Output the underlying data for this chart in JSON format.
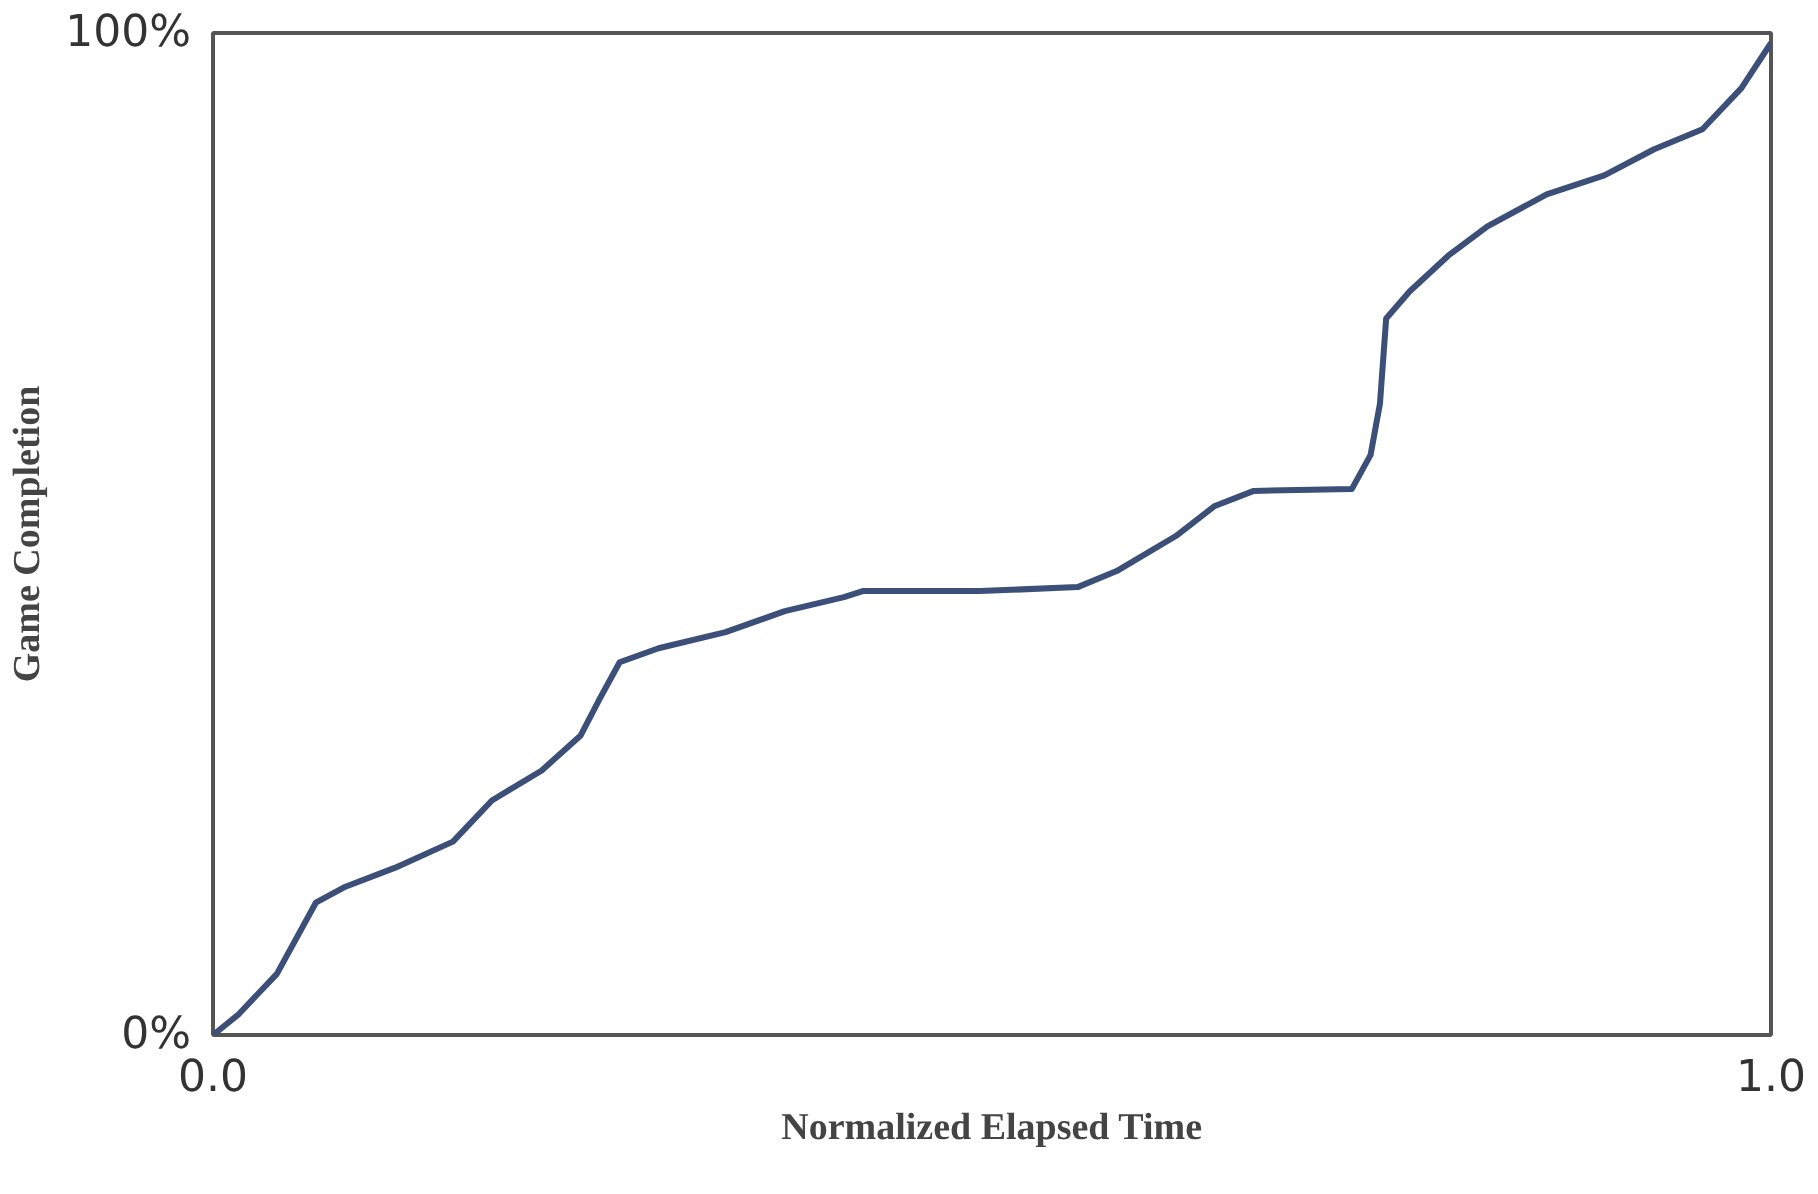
{
  "chart_data": {
    "type": "line",
    "xlabel": "Normalized Elapsed Time",
    "ylabel": "Game Completion",
    "xlim": [
      0,
      1
    ],
    "ylim": [
      0,
      100
    ],
    "xticks": [
      {
        "value": 0,
        "label": "0.0"
      },
      {
        "value": 1,
        "label": "1.0"
      }
    ],
    "yticks": [
      {
        "value": 0,
        "label": "0%"
      },
      {
        "value": 100,
        "label": "100%"
      }
    ],
    "marker": "none",
    "line_style": "solid",
    "series": [
      {
        "color": "#3b4f78",
        "x": [
          0,
          0.016,
          0.041,
          0.066,
          0.085,
          0.117,
          0.154,
          0.179,
          0.211,
          0.236,
          0.248,
          0.261,
          0.286,
          0.329,
          0.367,
          0.405,
          0.417,
          0.492,
          0.555,
          0.58,
          0.618,
          0.643,
          0.668,
          0.731,
          0.743,
          0.749,
          0.753,
          0.768,
          0.793,
          0.818,
          0.856,
          0.893,
          0.925,
          0.956,
          0.981,
          1.0
        ],
        "values": [
          0,
          2,
          6.1,
          13.2,
          14.8,
          16.7,
          19.3,
          23.4,
          26.4,
          29.9,
          33.5,
          37.2,
          38.6,
          40.2,
          42.3,
          43.7,
          44.3,
          44.3,
          44.7,
          46.3,
          49.8,
          52.8,
          54.3,
          54.5,
          57.9,
          63,
          71.5,
          74.2,
          77.8,
          80.7,
          83.9,
          85.8,
          88.4,
          90.4,
          94.5,
          99
        ]
      }
    ]
  }
}
